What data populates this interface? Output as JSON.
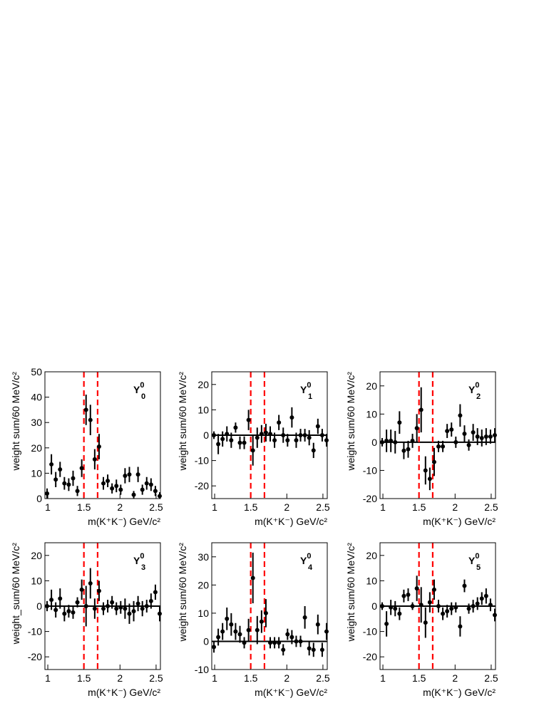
{
  "chart_data": [
    {
      "type": "scatter",
      "panel_label": {
        "base": "Y",
        "sub": "0",
        "sup": "0"
      },
      "x_label": "m(K⁺K⁻) GeV/c²",
      "y_label": "weight sum/60 MeV/c²",
      "xlim": [
        0.96,
        2.56
      ],
      "xticks": [
        1,
        1.5,
        2,
        2.5
      ],
      "ylim": [
        0,
        50
      ],
      "yticks": [
        0,
        10,
        20,
        30,
        40,
        50
      ],
      "vlines": [
        1.5,
        1.69
      ],
      "vline_color": "#ff0000",
      "hlines": [],
      "series": [
        {
          "color": "#000000",
          "x": [
            0.99,
            1.05,
            1.11,
            1.17,
            1.23,
            1.29,
            1.35,
            1.41,
            1.47,
            1.53,
            1.59,
            1.65,
            1.71,
            1.77,
            1.83,
            1.89,
            1.95,
            2.01,
            2.07,
            2.13,
            2.19,
            2.25,
            2.31,
            2.37,
            2.43,
            2.49,
            2.55
          ],
          "values": [
            2,
            13.5,
            7.5,
            11.5,
            6,
            5.5,
            8,
            3,
            12,
            35,
            31,
            15.5,
            20.5,
            6,
            7,
            4,
            5,
            3.5,
            9,
            9.5,
            1.5,
            9.5,
            3.5,
            6,
            5.5,
            3,
            1
          ],
          "errors": [
            2,
            4,
            3,
            3,
            2.5,
            2.5,
            3,
            2,
            3.5,
            6,
            6,
            4,
            5,
            2.5,
            2.5,
            2,
            2.5,
            2,
            3,
            3,
            1.5,
            3,
            2,
            2.5,
            2.5,
            2,
            1.5
          ]
        }
      ]
    },
    {
      "type": "scatter",
      "panel_label": {
        "base": "Y",
        "sub": "1",
        "sup": "0"
      },
      "x_label": "m(K⁺K⁻) GeV/c²",
      "y_label": "weight sum/60 MeV/c²",
      "xlim": [
        0.96,
        2.56
      ],
      "xticks": [
        1,
        1.5,
        2,
        2.5
      ],
      "ylim": [
        -25,
        25
      ],
      "yticks": [
        -20,
        -10,
        0,
        10,
        20
      ],
      "vlines": [
        1.5,
        1.69
      ],
      "vline_color": "#ff0000",
      "hlines": [
        0
      ],
      "series": [
        {
          "color": "#000000",
          "x": [
            0.99,
            1.05,
            1.11,
            1.17,
            1.23,
            1.29,
            1.35,
            1.41,
            1.47,
            1.53,
            1.59,
            1.65,
            1.71,
            1.77,
            1.83,
            1.89,
            1.95,
            2.01,
            2.07,
            2.13,
            2.19,
            2.25,
            2.31,
            2.37,
            2.43,
            2.49,
            2.55
          ],
          "values": [
            0,
            -3.5,
            -1.5,
            0.5,
            -2,
            3,
            -3,
            -3,
            6,
            -6,
            -1,
            0.5,
            1,
            0.5,
            -2,
            5,
            0,
            -2,
            7,
            -2,
            0,
            0,
            -1,
            -6,
            3.5,
            0,
            -2
          ],
          "errors": [
            1.5,
            4,
            3,
            3,
            3,
            2,
            2.5,
            2.5,
            4,
            6,
            4,
            3.5,
            3.5,
            3,
            3,
            3,
            3,
            2.5,
            4,
            3,
            2.5,
            2.5,
            3,
            3,
            3,
            2.5,
            2.5
          ]
        }
      ]
    },
    {
      "type": "scatter",
      "panel_label": {
        "base": "Y",
        "sub": "2",
        "sup": "0"
      },
      "x_label": "m(K⁺K⁻) GeV/c²",
      "y_label": "weight sum/60 MeV/c²",
      "xlim": [
        0.96,
        2.56
      ],
      "xticks": [
        1,
        1.5,
        2,
        2.5
      ],
      "ylim": [
        -20,
        25
      ],
      "yticks": [
        -20,
        -10,
        0,
        10,
        20
      ],
      "vlines": [
        1.5,
        1.69
      ],
      "vline_color": "#ff0000",
      "hlines": [
        0
      ],
      "series": [
        {
          "color": "#000000",
          "x": [
            0.99,
            1.05,
            1.11,
            1.17,
            1.23,
            1.29,
            1.35,
            1.41,
            1.47,
            1.53,
            1.59,
            1.65,
            1.71,
            1.77,
            1.83,
            1.89,
            1.95,
            2.01,
            2.07,
            2.13,
            2.19,
            2.25,
            2.31,
            2.37,
            2.43,
            2.49,
            2.55
          ],
          "values": [
            0,
            0.5,
            0.5,
            0,
            7,
            -3,
            -2.5,
            0.5,
            5,
            11.5,
            -10,
            -13,
            -7,
            -1.5,
            -1.5,
            4,
            4.5,
            0,
            9.5,
            3,
            -1,
            3.5,
            2,
            1.5,
            2,
            2,
            2.5
          ],
          "errors": [
            1.5,
            4,
            4,
            4,
            4,
            3,
            3,
            2.5,
            5,
            8,
            5,
            4,
            5,
            2,
            2,
            2.5,
            2.5,
            2,
            4,
            3,
            2,
            3,
            3,
            3,
            3,
            2.5,
            2.5
          ]
        }
      ]
    },
    {
      "type": "scatter",
      "panel_label": {
        "base": "Y",
        "sub": "3",
        "sup": "0"
      },
      "x_label": "m(K⁺K⁻) GeV/c²",
      "y_label": "weight_sum/60 MeV/c²",
      "xlim": [
        0.96,
        2.56
      ],
      "xticks": [
        1,
        1.5,
        2,
        2.5
      ],
      "ylim": [
        -25,
        25
      ],
      "yticks": [
        -20,
        -10,
        0,
        10,
        20
      ],
      "vlines": [
        1.5,
        1.69
      ],
      "vline_color": "#ff0000",
      "hlines": [
        0
      ],
      "series": [
        {
          "color": "#000000",
          "x": [
            0.99,
            1.05,
            1.11,
            1.17,
            1.23,
            1.29,
            1.35,
            1.41,
            1.47,
            1.53,
            1.59,
            1.65,
            1.71,
            1.77,
            1.83,
            1.89,
            1.95,
            2.01,
            2.07,
            2.13,
            2.19,
            2.25,
            2.31,
            2.37,
            2.43,
            2.49,
            2.55
          ],
          "values": [
            0,
            2.5,
            -1.5,
            3,
            -3,
            -2,
            -2.5,
            1.5,
            6.5,
            0,
            9,
            -1,
            6,
            -1,
            0,
            1.5,
            -1,
            -0.5,
            -1,
            -3,
            -2,
            1,
            -1,
            0,
            2,
            5.5,
            -3
          ],
          "errors": [
            2,
            4,
            3,
            4,
            3,
            2.5,
            2.5,
            2,
            4,
            8,
            6,
            4,
            4,
            2.5,
            2.5,
            2.5,
            2.5,
            2.5,
            4,
            4,
            4,
            3,
            3,
            2.5,
            3,
            3,
            3
          ]
        }
      ]
    },
    {
      "type": "scatter",
      "panel_label": {
        "base": "Y",
        "sub": "4",
        "sup": "0"
      },
      "x_label": "m(K⁺K⁻) GeV/c²",
      "y_label": "weight sum/60 MeV/c²",
      "xlim": [
        0.96,
        2.56
      ],
      "xticks": [
        1,
        1.5,
        2,
        2.5
      ],
      "ylim": [
        -10,
        35
      ],
      "yticks": [
        -10,
        0,
        10,
        20,
        30
      ],
      "vlines": [
        1.5,
        1.69
      ],
      "vline_color": "#ff0000",
      "hlines": [
        0
      ],
      "series": [
        {
          "color": "#000000",
          "x": [
            0.99,
            1.05,
            1.11,
            1.17,
            1.23,
            1.29,
            1.35,
            1.41,
            1.47,
            1.53,
            1.59,
            1.65,
            1.71,
            1.77,
            1.83,
            1.89,
            1.95,
            2.01,
            2.07,
            2.13,
            2.19,
            2.25,
            2.31,
            2.37,
            2.43,
            2.49,
            2.55
          ],
          "values": [
            -2,
            1.5,
            3.5,
            8,
            6,
            3.5,
            2.5,
            -0.5,
            4,
            22.5,
            4,
            7,
            10,
            -0.5,
            -0.5,
            -0.5,
            -3,
            2.5,
            1.5,
            0,
            0,
            8.5,
            -2.5,
            -3,
            6,
            -3,
            3.5
          ],
          "errors": [
            2,
            3,
            3,
            4,
            4,
            3,
            3,
            2,
            4,
            9,
            5,
            4,
            5,
            2,
            2,
            2,
            2,
            2,
            2.5,
            2,
            2,
            4,
            2.5,
            2.5,
            3.5,
            2.5,
            3
          ]
        }
      ]
    },
    {
      "type": "scatter",
      "panel_label": {
        "base": "Y",
        "sub": "5",
        "sup": "0"
      },
      "x_label": "m(K⁺K⁻) GeV/c²",
      "y_label": "weight sum/60 MeV/c²",
      "xlim": [
        0.96,
        2.56
      ],
      "xticks": [
        1,
        1.5,
        2,
        2.5
      ],
      "ylim": [
        -25,
        25
      ],
      "yticks": [
        -20,
        -10,
        0,
        10,
        20
      ],
      "vlines": [
        1.5,
        1.69
      ],
      "vline_color": "#ff0000",
      "hlines": [
        0
      ],
      "series": [
        {
          "color": "#000000",
          "x": [
            0.99,
            1.05,
            1.11,
            1.17,
            1.23,
            1.29,
            1.35,
            1.41,
            1.47,
            1.53,
            1.59,
            1.65,
            1.71,
            1.77,
            1.83,
            1.89,
            1.95,
            2.01,
            2.07,
            2.13,
            2.19,
            2.25,
            2.31,
            2.37,
            2.43,
            2.49,
            2.55
          ],
          "values": [
            0,
            -7,
            -0.5,
            -1,
            -3,
            4,
            4.5,
            0,
            7,
            0.5,
            -6.5,
            1.5,
            6.5,
            0,
            -3,
            -2,
            -1,
            -0.5,
            -8,
            8,
            -1,
            0,
            1,
            3,
            4,
            0.5,
            -3.5
          ],
          "errors": [
            1.5,
            5,
            3,
            3,
            2.5,
            2.5,
            2.5,
            1.5,
            5,
            7,
            6,
            4,
            4,
            2.5,
            2.5,
            2.5,
            2.5,
            2,
            4,
            2.5,
            2,
            2.5,
            2.5,
            2.5,
            3,
            2.5,
            2.5
          ]
        }
      ]
    }
  ]
}
